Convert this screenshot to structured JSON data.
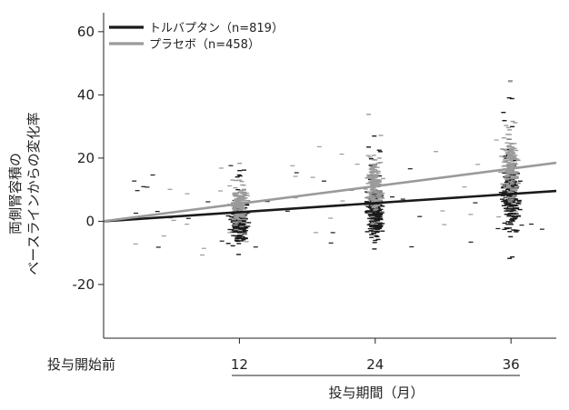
{
  "chart_data": {
    "type": "scatter",
    "title": "",
    "xlabel": "投与期間（月）",
    "ylabel_lines": [
      "両側腎容積の",
      "ベースラインからの変化率"
    ],
    "x_ticks": [
      {
        "x": 0,
        "label": "投与開始前"
      },
      {
        "x": 12,
        "label": "12"
      },
      {
        "x": 24,
        "label": "24"
      },
      {
        "x": 36,
        "label": "36"
      }
    ],
    "y_ticks": [
      60,
      40,
      20,
      0,
      -20
    ],
    "xlim": [
      0,
      40
    ],
    "ylim": [
      -37,
      66
    ],
    "legend_position": "top-left",
    "colors": {
      "tolvaptan": "#1a1a1a",
      "placebo": "#9a9a9a"
    },
    "series": [
      {
        "key": "tolvaptan",
        "name": "トルバプタン（n=819）",
        "trend_line": {
          "x": [
            0,
            40
          ],
          "y": [
            0,
            9.6
          ]
        },
        "cluster_centers": [
          {
            "x": 12,
            "mean": 0,
            "sd": 7
          },
          {
            "x": 24,
            "mean": 3,
            "sd": 10
          },
          {
            "x": 36,
            "mean": 8,
            "sd": 13
          }
        ]
      },
      {
        "key": "placebo",
        "name": "プラセボ（n=458）",
        "trend_line": {
          "x": [
            0,
            40
          ],
          "y": [
            0,
            18.5
          ]
        },
        "cluster_centers": [
          {
            "x": 12,
            "mean": 5,
            "sd": 7
          },
          {
            "x": 24,
            "mean": 11,
            "sd": 10
          },
          {
            "x": 36,
            "mean": 17,
            "sd": 13
          }
        ]
      }
    ]
  }
}
